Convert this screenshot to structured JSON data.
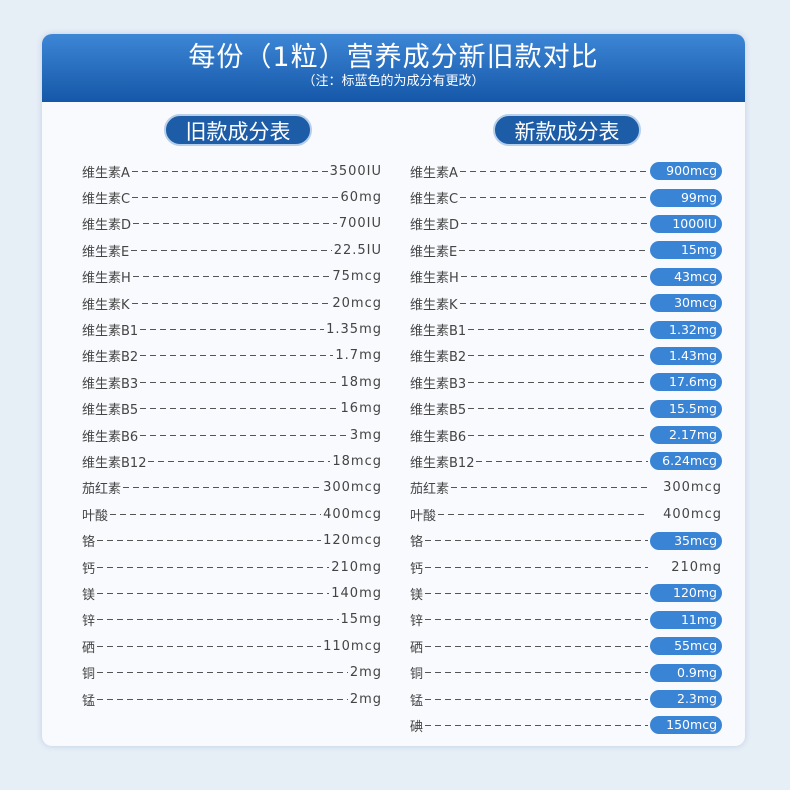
{
  "header": {
    "title": "每份（1粒）营养成分新旧款对比",
    "subtitle": "（注：标蓝色的为成分有更改）"
  },
  "old_table": {
    "heading": "旧款成分表",
    "rows": [
      {
        "name": "维生素A",
        "value": "3500IU"
      },
      {
        "name": "维生素C",
        "value": "60mg"
      },
      {
        "name": "维生素D",
        "value": "700IU"
      },
      {
        "name": "维生素E",
        "value": "22.5IU"
      },
      {
        "name": "维生素H",
        "value": "75mcg"
      },
      {
        "name": "维生素K",
        "value": "20mcg"
      },
      {
        "name": "维生素B1",
        "value": "1.35mg"
      },
      {
        "name": "维生素B2",
        "value": "1.7mg"
      },
      {
        "name": "维生素B3",
        "value": "18mg"
      },
      {
        "name": "维生素B5",
        "value": "16mg"
      },
      {
        "name": "维生素B6",
        "value": "3mg"
      },
      {
        "name": "维生素B12",
        "value": "18mcg"
      },
      {
        "name": "茄红素",
        "value": "300mcg"
      },
      {
        "name": "叶酸",
        "value": "400mcg"
      },
      {
        "name": "铬",
        "value": "120mcg"
      },
      {
        "name": "钙",
        "value": "210mg"
      },
      {
        "name": "镁",
        "value": "140mg"
      },
      {
        "name": "锌",
        "value": "15mg"
      },
      {
        "name": "硒",
        "value": "110mcg"
      },
      {
        "name": "铜",
        "value": "2mg"
      },
      {
        "name": "锰",
        "value": "2mg"
      }
    ]
  },
  "new_table": {
    "heading": "新款成分表",
    "highlight_color": "#3a84d6",
    "rows": [
      {
        "name": "维生素A",
        "value": "900mcg",
        "changed": true
      },
      {
        "name": "维生素C",
        "value": "99mg",
        "changed": true
      },
      {
        "name": "维生素D",
        "value": "1000IU",
        "changed": true
      },
      {
        "name": "维生素E",
        "value": "15mg",
        "changed": true
      },
      {
        "name": "维生素H",
        "value": "43mcg",
        "changed": true
      },
      {
        "name": "维生素K",
        "value": "30mcg",
        "changed": true
      },
      {
        "name": "维生素B1",
        "value": "1.32mg",
        "changed": true
      },
      {
        "name": "维生素B2",
        "value": "1.43mg",
        "changed": true
      },
      {
        "name": "维生素B3",
        "value": "17.6mg",
        "changed": true
      },
      {
        "name": "维生素B5",
        "value": "15.5mg",
        "changed": true
      },
      {
        "name": "维生素B6",
        "value": "2.17mg",
        "changed": true
      },
      {
        "name": "维生素B12",
        "value": "6.24mcg",
        "changed": true
      },
      {
        "name": "茄红素",
        "value": "300mcg",
        "changed": false
      },
      {
        "name": "叶酸",
        "value": "400mcg",
        "changed": false
      },
      {
        "name": "铬",
        "value": "35mcg",
        "changed": true
      },
      {
        "name": "钙",
        "value": "210mg",
        "changed": false
      },
      {
        "name": "镁",
        "value": "120mg",
        "changed": true
      },
      {
        "name": "锌",
        "value": "11mg",
        "changed": true
      },
      {
        "name": "硒",
        "value": "55mcg",
        "changed": true
      },
      {
        "name": "铜",
        "value": "0.9mg",
        "changed": true
      },
      {
        "name": "锰",
        "value": "2.3mg",
        "changed": true
      },
      {
        "name": "碘",
        "value": "150mcg",
        "changed": true
      }
    ]
  }
}
